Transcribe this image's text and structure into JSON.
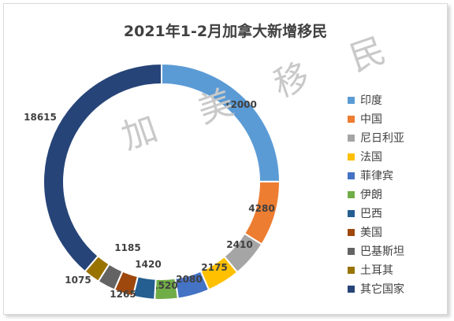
{
  "chart_data": {
    "type": "pie",
    "variant": "doughnut",
    "title": "2021年1-2月加拿大新增移民",
    "categories": [
      "印度",
      "中国",
      "尼日利亚",
      "法国",
      "菲律宾",
      "伊朗",
      "巴西",
      "美国",
      "巴基斯坦",
      "土耳其",
      "其它国家"
    ],
    "values": [
      12000,
      4280,
      2410,
      2175,
      2080,
      1520,
      1420,
      1265,
      1185,
      1075,
      18615
    ],
    "colors": [
      "#5b9bd5",
      "#ed7d31",
      "#a5a5a5",
      "#ffc000",
      "#4472c4",
      "#70ad47",
      "#255e91",
      "#9e480e",
      "#636363",
      "#997300",
      "#264478"
    ],
    "legend": "right",
    "data_labels": true
  },
  "watermark": "加 美 移 民"
}
